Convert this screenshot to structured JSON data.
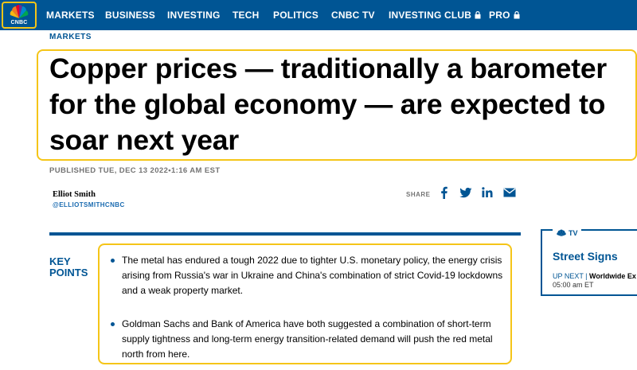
{
  "brand": {
    "logo_text": "CNBC",
    "colors": {
      "nav_bg": "#005594",
      "highlight": "#f5c518",
      "headline": "#000000",
      "accent_blue": "#005594"
    }
  },
  "nav": {
    "items": [
      {
        "label": "MARKETS"
      },
      {
        "label": "BUSINESS"
      },
      {
        "label": "INVESTING"
      },
      {
        "label": "TECH"
      },
      {
        "label": "POLITICS"
      },
      {
        "label": "CNBC TV"
      },
      {
        "label": "INVESTING CLUB",
        "locked": true,
        "icon": "lock-icon"
      },
      {
        "label": "PRO",
        "locked": true,
        "icon": "lock-icon"
      }
    ]
  },
  "article": {
    "section": "MARKETS",
    "headline": "Copper prices — traditionally a barometer for the global economy — are expected to soar next year",
    "published": "PUBLISHED TUE, DEC 13 2022•1:16 AM EST",
    "author": {
      "name": "Elliot Smith",
      "handle": "@ELLIOTSMITHCNBC"
    },
    "share": {
      "label": "SHARE",
      "icons": [
        "facebook-icon",
        "twitter-icon",
        "linkedin-icon",
        "email-icon"
      ]
    },
    "key_points": {
      "title_line1": "KEY",
      "title_line2": "POINTS",
      "items": [
        "The metal has endured a tough 2022 due to tighter U.S. monetary policy, the energy crisis arising from Russia's war in Ukraine and China's combination of strict Covid-19 lockdowns and a weak property market.",
        "Goldman Sachs and Bank of America have both suggested a combination of short-term supply tightness and long-term energy transition-related demand will push the red metal north from here."
      ]
    }
  },
  "widget": {
    "brand": "TV",
    "title": "Street Signs",
    "up_next_label": "UP NEXT |",
    "up_next_show": "Worldwide Ex",
    "time": "05:00 am ET"
  }
}
